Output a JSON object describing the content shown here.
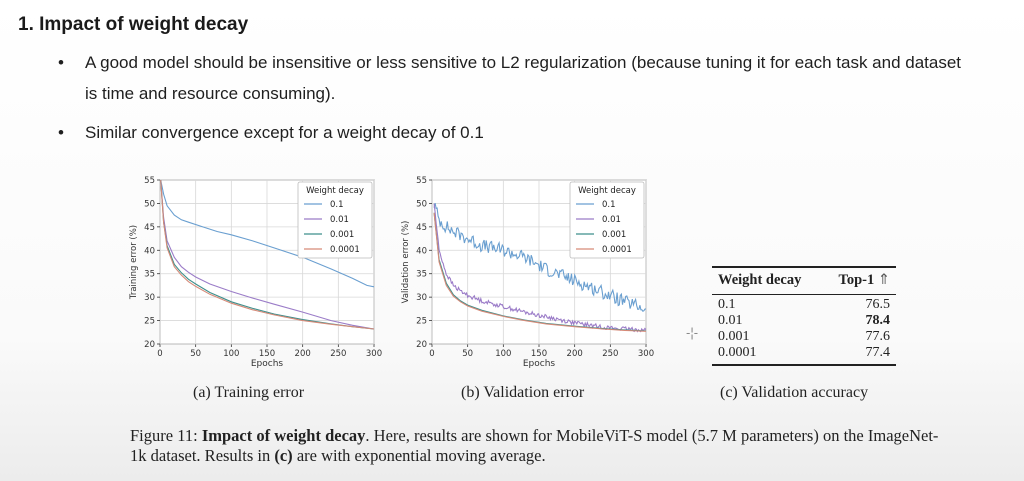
{
  "slide": {
    "heading": "1.  Impact of weight decay",
    "bullets": [
      "A good model should be insensitive or less sensitive to L2 regularization (because tuning it for each task and dataset is time and resource consuming).",
      "Similar convergence except for a weight decay of 0.1"
    ]
  },
  "figure": {
    "subcaptions": [
      "(a) Training error",
      "(b) Validation error",
      "(c) Validation accuracy"
    ],
    "caption": {
      "label": "Figure 11:",
      "bold": "Impact of weight decay",
      "rest_1": ". Here, results are shown for MobileViT-S model (5.7 M parameters) on the ImageNet-1k dataset. Results in ",
      "bold_c": "(c)",
      "rest_2": " are with exponential moving average."
    }
  },
  "table": {
    "headers": [
      "Weight decay",
      "Top-1"
    ],
    "header_arrow": "⇑",
    "rows": [
      {
        "wd": "0.1",
        "top1": "76.5",
        "best": false
      },
      {
        "wd": "0.01",
        "top1": "78.4",
        "best": true
      },
      {
        "wd": "0.001",
        "top1": "77.6",
        "best": false
      },
      {
        "wd": "0.0001",
        "top1": "77.4",
        "best": false
      }
    ]
  },
  "chart_data": [
    {
      "type": "line",
      "ylabel": "Training error (%)",
      "xlabel": "Epochs",
      "xlim": [
        0,
        300
      ],
      "ylim": [
        20,
        55
      ],
      "xticks": [
        0,
        50,
        100,
        150,
        200,
        250,
        300
      ],
      "yticks": [
        20,
        25,
        30,
        35,
        40,
        45,
        50,
        55
      ],
      "grid": true,
      "legend_title": "Weight decay",
      "legend_position": "top-right",
      "series": [
        {
          "name": "0.1",
          "color": "#6a9fd0",
          "x": [
            1,
            5,
            10,
            20,
            30,
            40,
            60,
            80,
            100,
            130,
            160,
            200,
            240,
            270,
            290,
            300
          ],
          "y": [
            55,
            52,
            49.5,
            47.5,
            46.5,
            46,
            45,
            44,
            43.3,
            42,
            40.5,
            38.5,
            36,
            34,
            32.5,
            32.2
          ]
        },
        {
          "name": "0.01",
          "color": "#9b7cc8",
          "x": [
            1,
            5,
            10,
            20,
            30,
            40,
            50,
            70,
            100,
            130,
            160,
            200,
            240,
            270,
            300
          ],
          "y": [
            55,
            47,
            42,
            38.5,
            36.5,
            35.3,
            34.3,
            32.8,
            31.2,
            29.8,
            28.5,
            26.8,
            25,
            24,
            23.2
          ]
        },
        {
          "name": "0.001",
          "color": "#3e8f8c",
          "x": [
            1,
            5,
            10,
            20,
            30,
            40,
            50,
            70,
            100,
            130,
            160,
            200,
            240,
            270,
            300
          ],
          "y": [
            55,
            46,
            41,
            37,
            35.2,
            33.8,
            32.8,
            31,
            29,
            27.6,
            26.4,
            25.2,
            24.3,
            23.7,
            23.2
          ]
        },
        {
          "name": "0.0001",
          "color": "#d68a78",
          "x": [
            1,
            5,
            10,
            20,
            30,
            40,
            50,
            70,
            100,
            130,
            160,
            200,
            240,
            270,
            300
          ],
          "y": [
            55,
            46,
            40.5,
            36.5,
            34.7,
            33.3,
            32.3,
            30.6,
            28.7,
            27.3,
            26.2,
            25,
            24.2,
            23.7,
            23.2
          ]
        }
      ]
    },
    {
      "type": "line",
      "ylabel": "Validation error (%)",
      "xlabel": "Epochs",
      "xlim": [
        0,
        300
      ],
      "ylim": [
        20,
        55
      ],
      "xticks": [
        0,
        50,
        100,
        150,
        200,
        250,
        300
      ],
      "yticks": [
        20,
        25,
        30,
        35,
        40,
        45,
        50,
        55
      ],
      "grid": true,
      "legend_title": "Weight decay",
      "legend_position": "top-right",
      "series": [
        {
          "name": "0.1",
          "color": "#6a9fd0",
          "noisy": true,
          "x": [
            3,
            10,
            20,
            30,
            50,
            70,
            100,
            130,
            160,
            200,
            240,
            270,
            290,
            300
          ],
          "y": [
            50,
            46.5,
            45,
            44,
            42.5,
            41,
            40,
            38.5,
            36,
            33.5,
            31,
            29,
            28,
            27.5
          ]
        },
        {
          "name": "0.01",
          "color": "#9b7cc8",
          "noisy": true,
          "x": [
            3,
            10,
            20,
            30,
            40,
            50,
            70,
            100,
            130,
            160,
            200,
            240,
            270,
            300
          ],
          "y": [
            50,
            40,
            35,
            32.5,
            31.3,
            30.4,
            29.2,
            28,
            26.8,
            25.8,
            24.5,
            23.6,
            23.2,
            23
          ]
        },
        {
          "name": "0.001",
          "color": "#3e8f8c",
          "noisy": false,
          "x": [
            3,
            10,
            20,
            30,
            40,
            50,
            70,
            100,
            130,
            160,
            200,
            240,
            270,
            300
          ],
          "y": [
            48,
            38,
            33,
            30.5,
            29.2,
            28.3,
            27.2,
            26,
            25.1,
            24.4,
            23.8,
            23.3,
            23,
            22.8
          ]
        },
        {
          "name": "0.0001",
          "color": "#d68a78",
          "noisy": false,
          "x": [
            3,
            10,
            20,
            30,
            40,
            50,
            70,
            100,
            130,
            160,
            200,
            240,
            270,
            300
          ],
          "y": [
            48,
            37.5,
            32.5,
            30.2,
            29,
            28.1,
            27,
            25.9,
            25,
            24.3,
            23.7,
            23.2,
            22.9,
            22.7
          ]
        }
      ]
    }
  ]
}
